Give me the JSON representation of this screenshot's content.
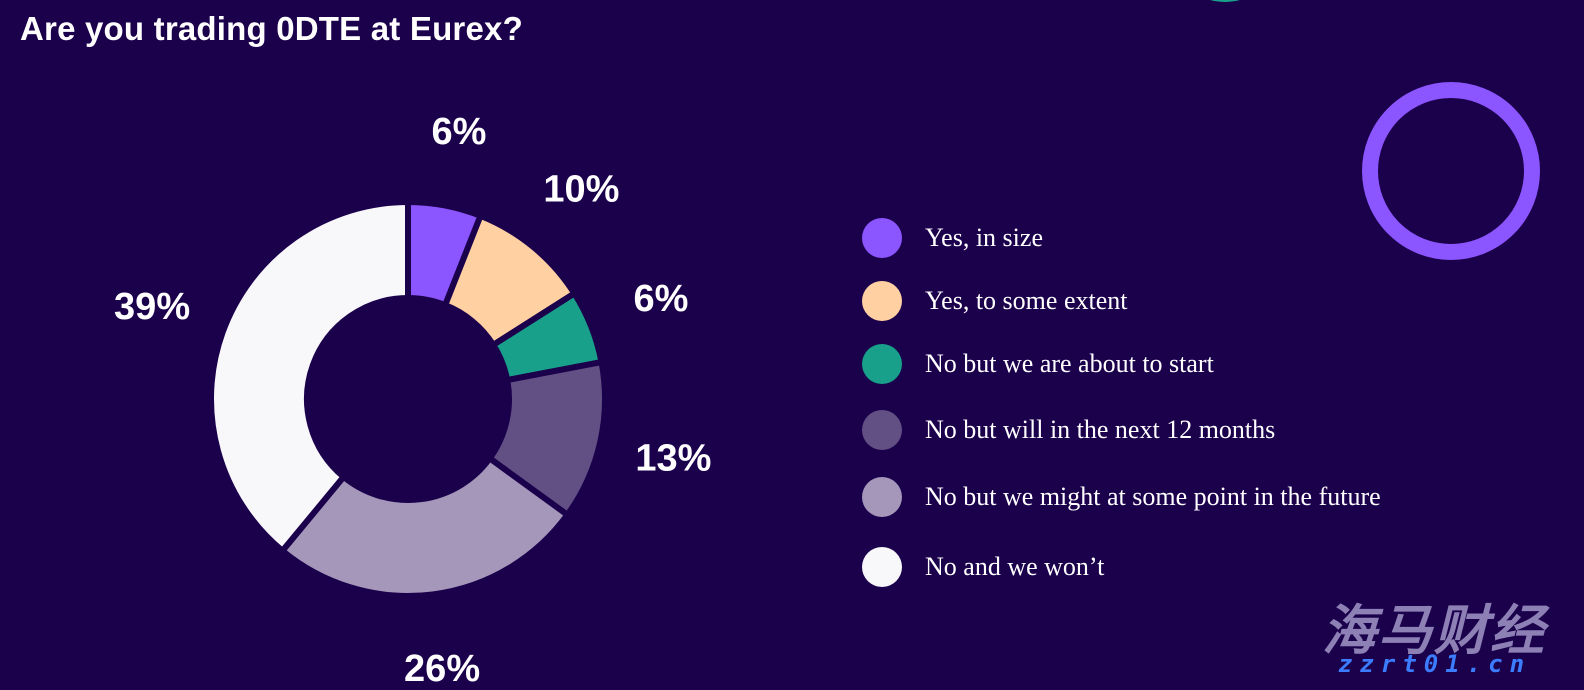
{
  "title": "Are you trading 0DTE at Eurex?",
  "chart_data": {
    "type": "pie",
    "donut": true,
    "title": "Are you trading 0DTE at Eurex?",
    "categories": [
      "Yes, in size",
      "Yes, to some extent",
      "No but we are about to start",
      "No but will in the next 12 months",
      "No but we might at some point in the future",
      "No and we won’t"
    ],
    "values": [
      6,
      10,
      6,
      13,
      26,
      39
    ],
    "value_labels": [
      "6%",
      "10%",
      "6%",
      "13%",
      "26%",
      "39%"
    ],
    "colors": [
      "#8b55ff",
      "#ffd1a2",
      "#18a08a",
      "#625085",
      "#a497b9",
      "#f8f7fa"
    ],
    "legend_placement": "right"
  },
  "watermark": {
    "brand": "海马财经",
    "url": "zzrt01.cn"
  },
  "colors": {
    "background": "#1b004c",
    "accent_ring": "#8b55ff",
    "text": "#ffffff"
  }
}
